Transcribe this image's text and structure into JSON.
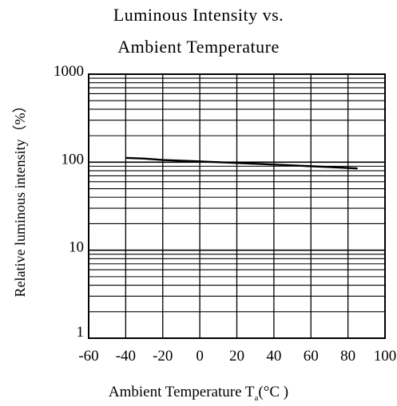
{
  "chart_data": {
    "type": "line",
    "title_line1": "Luminous Intensity vs.",
    "title_line2": "Ambient Temperature",
    "ylabel": "Relative luminous intensity（%）",
    "xlabel_main": "Ambient Temperature T",
    "xlabel_sub": "a",
    "xlabel_unit": "(°C )",
    "xlim": [
      -60,
      100
    ],
    "ylim": [
      1,
      1000
    ],
    "yscale": "log",
    "grid": true,
    "x_ticks": [
      "-60",
      "-40",
      "-20",
      "0",
      "20",
      "40",
      "60",
      "80",
      "100"
    ],
    "y_ticks": [
      "1",
      "10",
      "100",
      "1000"
    ],
    "series": [
      {
        "x": [
          -40,
          -30,
          -20,
          -10,
          0,
          10,
          20,
          30,
          40,
          50,
          60,
          70,
          80,
          85
        ],
        "y": [
          112,
          110,
          106,
          104,
          102,
          100,
          98,
          96,
          94,
          92,
          90,
          88,
          86,
          85
        ]
      }
    ]
  }
}
